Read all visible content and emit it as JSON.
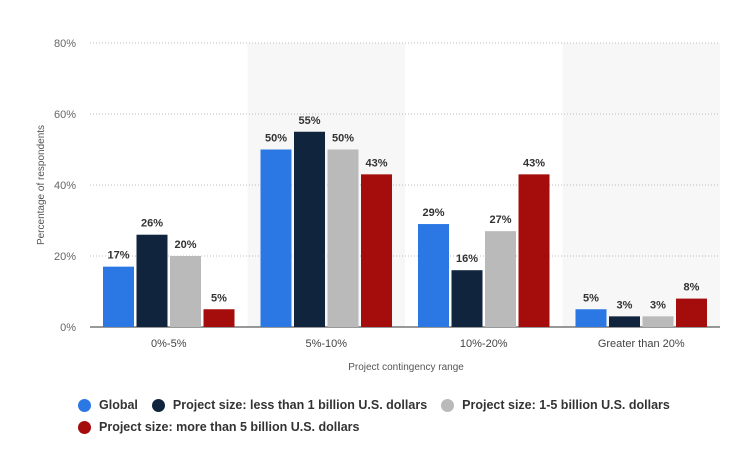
{
  "chart_data": {
    "type": "bar",
    "xlabel": "Project contingency range",
    "ylabel": "Percentage of respondents",
    "ylim": [
      0,
      80
    ],
    "yticks": [
      "0%",
      "20%",
      "40%",
      "60%",
      "80%"
    ],
    "grid": true,
    "legend_position": "bottom",
    "categories": [
      "0%-5%",
      "5%-10%",
      "10%-20%",
      "Greater than 20%"
    ],
    "series": [
      {
        "name": "Global",
        "color": "#2b78e4",
        "values": [
          17,
          50,
          29,
          5
        ],
        "labels": [
          "17%",
          "50%",
          "29%",
          "5%"
        ]
      },
      {
        "name": "Project size: less than 1 billion U.S. dollars",
        "color": "#10253d",
        "values": [
          26,
          55,
          16,
          3
        ],
        "labels": [
          "26%",
          "55%",
          "16%",
          "3%"
        ]
      },
      {
        "name": "Project size: 1-5 billion U.S. dollars",
        "color": "#bababa",
        "values": [
          20,
          50,
          27,
          3
        ],
        "labels": [
          "20%",
          "50%",
          "27%",
          "3%"
        ]
      },
      {
        "name": "Project size: more than 5 billion U.S. dollars",
        "color": "#a50d0d",
        "values": [
          5,
          43,
          43,
          8
        ],
        "labels": [
          "5%",
          "43%",
          "43%",
          "8%"
        ]
      }
    ]
  }
}
